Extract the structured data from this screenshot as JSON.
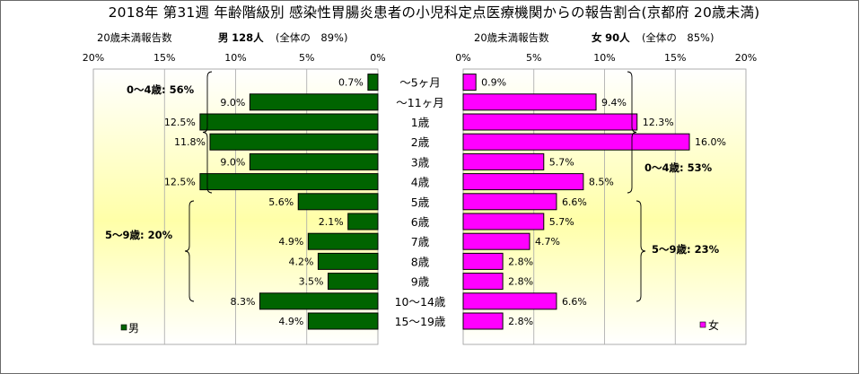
{
  "title": "2018年 第31週 年齢階級別 感染性胃腸炎患者の小児科定点医療機関からの報告割合(京都府 20歳未満)",
  "left_header": {
    "caption": "20歳未満報告数",
    "sex": "男",
    "count": "128人",
    "share": "(全体の　89%)"
  },
  "right_header": {
    "caption": "20歳未満報告数",
    "sex": "女",
    "count": "90人",
    "share": "(全体の　85%)"
  },
  "colors": {
    "male_bar": "#006400",
    "female_bar": "#ff00ff",
    "background_top": "#ffffff",
    "background_mid": "#ffffb0"
  },
  "chart_data": {
    "type": "bar",
    "orientation": "horizontal",
    "layout": "population-pyramid",
    "categories": [
      "～5ヶ月",
      "～11ヶ月",
      "1歳",
      "2歳",
      "3歳",
      "4歳",
      "5歳",
      "6歳",
      "7歳",
      "8歳",
      "9歳",
      "10～14歳",
      "15～19歳"
    ],
    "series": [
      {
        "name": "男",
        "values": [
          0.7,
          9.0,
          12.5,
          11.8,
          9.0,
          12.5,
          5.6,
          2.1,
          4.9,
          4.2,
          3.5,
          8.3,
          4.9
        ],
        "labels": [
          "0.7%",
          "9.0%",
          "12.5%",
          "11.8%",
          "9.0%",
          "12.5%",
          "5.6%",
          "2.1%",
          "4.9%",
          "4.2%",
          "3.5%",
          "8.3%",
          "4.9%"
        ]
      },
      {
        "name": "女",
        "values": [
          0.9,
          9.4,
          12.3,
          16.0,
          5.7,
          8.5,
          6.6,
          5.7,
          4.7,
          2.8,
          2.8,
          6.6,
          2.8
        ],
        "labels": [
          "0.9%",
          "9.4%",
          "12.3%",
          "16.0%",
          "5.7%",
          "8.5%",
          "6.6%",
          "5.7%",
          "4.7%",
          "2.8%",
          "2.8%",
          "6.6%",
          "2.8%"
        ]
      }
    ],
    "male_ticks": [
      "20%",
      "15%",
      "10%",
      "5%",
      "0%"
    ],
    "female_ticks": [
      "0%",
      "5%",
      "10%",
      "15%",
      "20%"
    ],
    "xlim": [
      0,
      20
    ],
    "grid": true,
    "legend_placement": "bottom-left / bottom-right",
    "annotations": {
      "male_0_4": "0～4歳: 56%",
      "male_5_9": "5～9歳: 20%",
      "female_0_4": "0～4歳: 53%",
      "female_5_9": "5～9歳: 23%"
    }
  }
}
